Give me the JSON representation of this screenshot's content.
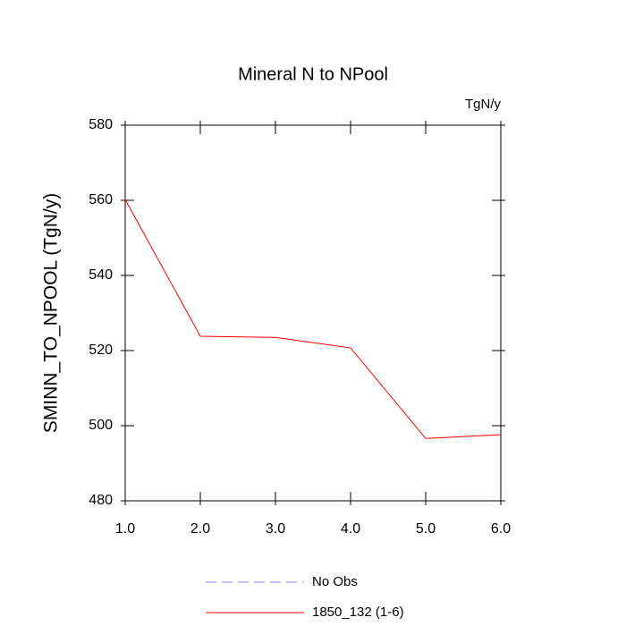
{
  "chart_data": {
    "type": "line",
    "title": "Mineral N to NPool",
    "units": "TgN/y",
    "y_label": "SMINN_TO_NPOOL  (TgN/y)",
    "x": [
      1,
      2,
      3,
      4,
      5,
      6
    ],
    "series": [
      {
        "name": "No Obs",
        "color": "#8080ff",
        "dashed": true,
        "values": [
          null,
          null,
          null,
          null,
          null,
          null
        ]
      },
      {
        "name": "1850_132 (1-6)",
        "color": "#ff0000",
        "dashed": false,
        "values": [
          560.2,
          523.8,
          523.5,
          520.7,
          496.6,
          497.6
        ]
      }
    ],
    "xlim": [
      1,
      6
    ],
    "xticks": [
      {
        "value": 1,
        "label": "1.0"
      },
      {
        "value": 2,
        "label": "2.0"
      },
      {
        "value": 3,
        "label": "3.0"
      },
      {
        "value": 4,
        "label": "4.0"
      },
      {
        "value": 5,
        "label": "5.0"
      },
      {
        "value": 6,
        "label": "6.0"
      }
    ],
    "ylim": [
      480,
      580
    ],
    "yticks": [
      480,
      500,
      520,
      540,
      560,
      580
    ],
    "grid": false
  }
}
